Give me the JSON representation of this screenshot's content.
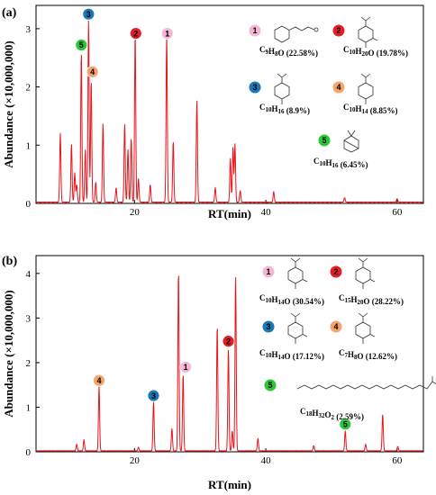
{
  "chart_data": [
    {
      "type": "line",
      "panel_label": "(a)",
      "xlabel": "RT(min)",
      "ylabel": "Abundance (×10,000,000)",
      "xlim": [
        5,
        64
      ],
      "ylim": [
        0,
        3.4
      ],
      "xticks": [
        20,
        40,
        60
      ],
      "yticks": [
        0,
        1,
        2,
        3
      ],
      "peaks": [
        {
          "x": 8.7,
          "y": 1.18
        },
        {
          "x": 10.4,
          "y": 1.0
        },
        {
          "x": 10.9,
          "y": 0.5
        },
        {
          "x": 11.2,
          "y": 0.3
        },
        {
          "x": 11.9,
          "y": 2.58
        },
        {
          "x": 12.5,
          "y": 0.9
        },
        {
          "x": 13.0,
          "y": 3.12
        },
        {
          "x": 13.4,
          "y": 2.1
        },
        {
          "x": 14.1,
          "y": 0.35
        },
        {
          "x": 15.2,
          "y": 1.35
        },
        {
          "x": 17.2,
          "y": 0.25
        },
        {
          "x": 18.5,
          "y": 1.35
        },
        {
          "x": 19.0,
          "y": 0.9
        },
        {
          "x": 19.5,
          "y": 1.1
        },
        {
          "x": 20.1,
          "y": 2.9
        },
        {
          "x": 20.6,
          "y": 0.4
        },
        {
          "x": 22.4,
          "y": 0.3
        },
        {
          "x": 24.9,
          "y": 2.9
        },
        {
          "x": 25.9,
          "y": 1.05
        },
        {
          "x": 29.5,
          "y": 1.75
        },
        {
          "x": 32.3,
          "y": 0.25
        },
        {
          "x": 34.6,
          "y": 0.75
        },
        {
          "x": 35.0,
          "y": 0.95
        },
        {
          "x": 35.3,
          "y": 1.0
        },
        {
          "x": 36.1,
          "y": 0.2
        },
        {
          "x": 41.2,
          "y": 0.18
        },
        {
          "x": 52.0,
          "y": 0.08
        },
        {
          "x": 60.0,
          "y": 0.06
        }
      ],
      "markers": [
        {
          "id": "1",
          "color": "#f4b8d6",
          "x": 25.0,
          "y": 2.92
        },
        {
          "id": "2",
          "color": "#e41e26",
          "x": 20.2,
          "y": 2.92
        },
        {
          "id": "3",
          "color": "#1a78b6",
          "x": 13.0,
          "y": 3.25
        },
        {
          "id": "4",
          "color": "#f6a469",
          "x": 13.6,
          "y": 2.26
        },
        {
          "id": "5",
          "color": "#2bc738",
          "x": 11.9,
          "y": 2.72
        }
      ],
      "compounds": [
        {
          "id": "1",
          "label": "C9H8O (22.58%)"
        },
        {
          "id": "2",
          "label": "C10H20O (19.78%)"
        },
        {
          "id": "3",
          "label": "C10H16 (8.9%)"
        },
        {
          "id": "4",
          "label": "C10H14 (8.85%)"
        },
        {
          "id": "5",
          "label": "C10H16 (6.45%)"
        }
      ]
    },
    {
      "type": "line",
      "panel_label": "(b)",
      "xlabel": "RT(min)",
      "ylabel": "Abundance (×10,000,000)",
      "xlim": [
        5,
        64
      ],
      "ylim": [
        0,
        4.4
      ],
      "xticks": [
        20,
        40,
        60
      ],
      "yticks": [
        0,
        1,
        2,
        3,
        4
      ],
      "peaks": [
        {
          "x": 11.2,
          "y": 0.15
        },
        {
          "x": 12.3,
          "y": 0.25
        },
        {
          "x": 14.6,
          "y": 1.45
        },
        {
          "x": 20.6,
          "y": 0.08
        },
        {
          "x": 22.9,
          "y": 1.1
        },
        {
          "x": 25.7,
          "y": 0.5
        },
        {
          "x": 26.7,
          "y": 4.05
        },
        {
          "x": 27.4,
          "y": 1.72
        },
        {
          "x": 32.6,
          "y": 2.82
        },
        {
          "x": 34.3,
          "y": 2.28
        },
        {
          "x": 34.9,
          "y": 0.45
        },
        {
          "x": 35.4,
          "y": 3.92
        },
        {
          "x": 38.8,
          "y": 0.28
        },
        {
          "x": 47.3,
          "y": 0.12
        },
        {
          "x": 52.1,
          "y": 0.45
        },
        {
          "x": 55.2,
          "y": 0.15
        },
        {
          "x": 57.8,
          "y": 0.82
        },
        {
          "x": 60.1,
          "y": 0.1
        }
      ],
      "markers": [
        {
          "id": "1",
          "color": "#f4b8d6",
          "x": 27.8,
          "y": 1.9
        },
        {
          "id": "2",
          "color": "#e41e26",
          "x": 34.3,
          "y": 2.48
        },
        {
          "id": "3",
          "color": "#1a78b6",
          "x": 22.9,
          "y": 1.26
        },
        {
          "id": "4",
          "color": "#f6a469",
          "x": 14.6,
          "y": 1.6
        },
        {
          "id": "5",
          "color": "#2bc738",
          "x": 52.1,
          "y": 0.62
        }
      ],
      "compounds": [
        {
          "id": "1",
          "label": "C10H14O (30.54%)"
        },
        {
          "id": "2",
          "label": "C15H20O (28.22%)"
        },
        {
          "id": "3",
          "label": "C10H14O (17.12%)"
        },
        {
          "id": "4",
          "label": "C7H8O (12.62%)"
        },
        {
          "id": "5",
          "label": "C18H32O2 (2.59%)"
        }
      ]
    }
  ]
}
